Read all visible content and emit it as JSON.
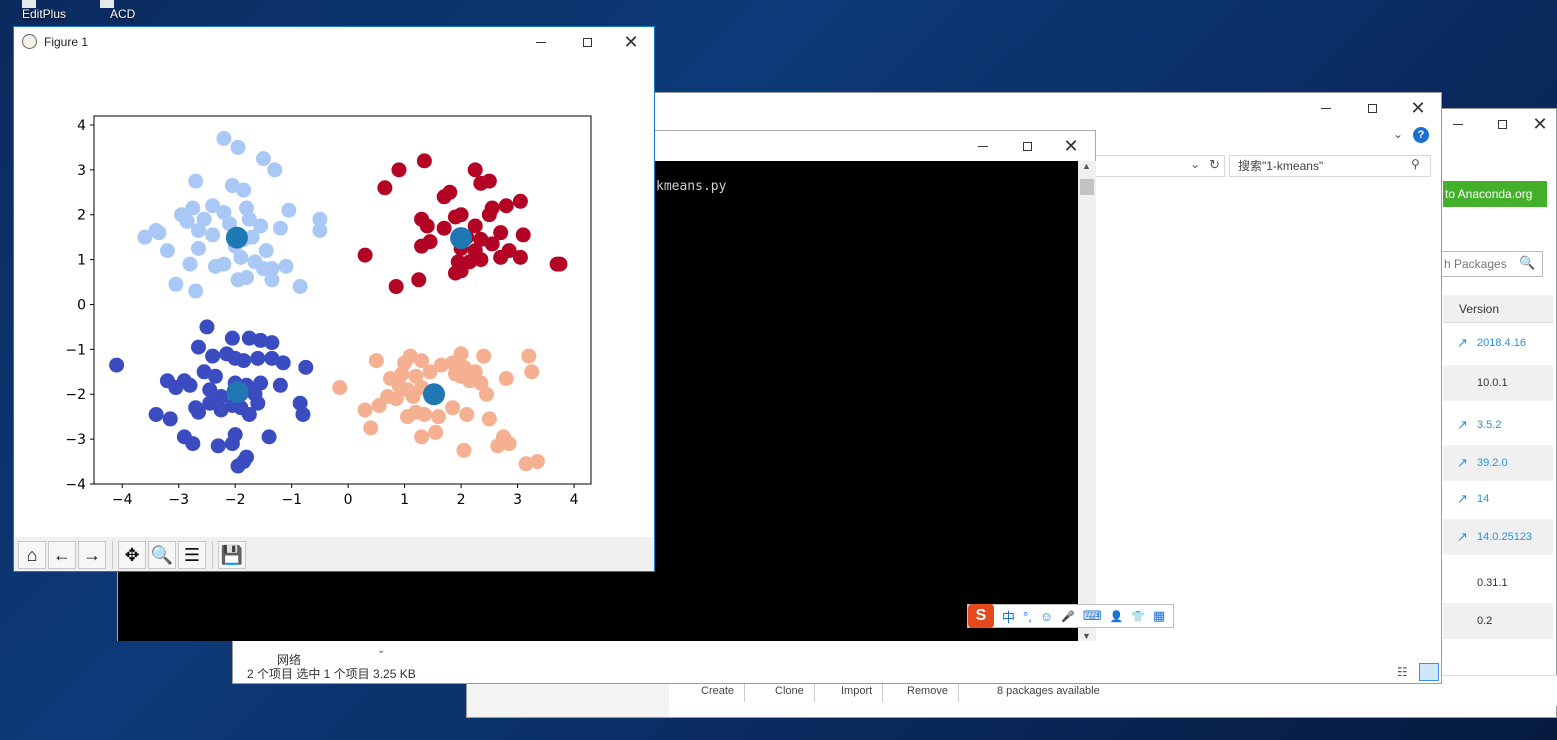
{
  "desktop": {
    "icons": [
      {
        "label": "EditPlus"
      },
      {
        "label": "ACD"
      }
    ]
  },
  "figure": {
    "title": "Figure 1",
    "toolbar": [
      "home-icon",
      "back-icon",
      "forward-icon",
      "pan-icon",
      "zoom-icon",
      "configure-icon",
      "save-icon"
    ]
  },
  "chart_data": {
    "type": "scatter",
    "title": "",
    "xlabel": "",
    "ylabel": "",
    "xlim": [
      -4.5,
      4.3
    ],
    "ylim": [
      -4,
      4.2
    ],
    "xticks": [
      -4,
      -3,
      -2,
      -1,
      0,
      1,
      2,
      3,
      4
    ],
    "yticks": [
      -4,
      -3,
      -2,
      -1,
      0,
      1,
      2,
      3,
      4
    ],
    "grid": false,
    "legend": "none",
    "series": [
      {
        "color": "#aac8f5",
        "points": [
          [
            -2.2,
            3.7
          ],
          [
            -1.95,
            3.5
          ],
          [
            -1.5,
            3.25
          ],
          [
            -1.3,
            3.0
          ],
          [
            -2.7,
            2.75
          ],
          [
            -2.05,
            2.65
          ],
          [
            -1.85,
            2.55
          ],
          [
            -2.4,
            2.2
          ],
          [
            -2.75,
            2.15
          ],
          [
            -2.95,
            2.0
          ],
          [
            -2.85,
            1.85
          ],
          [
            -2.55,
            1.9
          ],
          [
            -2.2,
            2.05
          ],
          [
            -1.8,
            2.15
          ],
          [
            -1.55,
            1.75
          ],
          [
            -1.75,
            1.9
          ],
          [
            -2.1,
            1.8
          ],
          [
            -1.05,
            2.1
          ],
          [
            -1.2,
            1.7
          ],
          [
            -0.5,
            1.9
          ],
          [
            -0.5,
            1.65
          ],
          [
            -3.6,
            1.5
          ],
          [
            -3.35,
            1.6
          ],
          [
            -3.4,
            1.65
          ],
          [
            -3.2,
            1.2
          ],
          [
            -2.65,
            1.25
          ],
          [
            -2.4,
            1.55
          ],
          [
            -2.65,
            1.65
          ],
          [
            -2.0,
            1.3
          ],
          [
            -1.85,
            1.45
          ],
          [
            -1.7,
            1.5
          ],
          [
            -1.45,
            1.2
          ],
          [
            -2.2,
            0.9
          ],
          [
            -2.35,
            0.85
          ],
          [
            -1.9,
            1.05
          ],
          [
            -1.65,
            0.95
          ],
          [
            -1.5,
            0.8
          ],
          [
            -1.35,
            0.8
          ],
          [
            -1.1,
            0.85
          ],
          [
            -1.95,
            0.55
          ],
          [
            -1.8,
            0.6
          ],
          [
            -1.35,
            0.55
          ],
          [
            -2.8,
            0.9
          ],
          [
            -3.05,
            0.45
          ],
          [
            -2.7,
            0.3
          ],
          [
            -0.85,
            0.4
          ]
        ]
      },
      {
        "color": "#b40426",
        "points": [
          [
            1.35,
            3.2
          ],
          [
            0.9,
            3.0
          ],
          [
            2.25,
            3.0
          ],
          [
            2.5,
            2.75
          ],
          [
            2.35,
            2.7
          ],
          [
            0.65,
            2.6
          ],
          [
            1.8,
            2.5
          ],
          [
            1.7,
            2.4
          ],
          [
            2.55,
            2.15
          ],
          [
            2.8,
            2.2
          ],
          [
            3.05,
            2.3
          ],
          [
            1.3,
            1.9
          ],
          [
            1.9,
            1.95
          ],
          [
            2.0,
            2.0
          ],
          [
            2.5,
            2.0
          ],
          [
            1.4,
            1.75
          ],
          [
            1.7,
            1.7
          ],
          [
            2.25,
            1.75
          ],
          [
            2.7,
            1.6
          ],
          [
            3.1,
            1.55
          ],
          [
            2.1,
            1.5
          ],
          [
            2.35,
            1.45
          ],
          [
            2.55,
            1.35
          ],
          [
            1.45,
            1.4
          ],
          [
            1.3,
            1.3
          ],
          [
            2.0,
            1.25
          ],
          [
            2.25,
            1.2
          ],
          [
            2.85,
            1.2
          ],
          [
            2.35,
            1.0
          ],
          [
            2.7,
            1.05
          ],
          [
            3.05,
            1.05
          ],
          [
            2.15,
            0.95
          ],
          [
            1.95,
            0.95
          ],
          [
            1.9,
            0.7
          ],
          [
            0.3,
            1.1
          ],
          [
            1.25,
            0.55
          ],
          [
            2.0,
            0.75
          ],
          [
            0.85,
            0.4
          ],
          [
            3.75,
            0.9
          ],
          [
            3.7,
            0.9
          ]
        ]
      },
      {
        "color": "#3b4cc0",
        "points": [
          [
            -2.5,
            -0.5
          ],
          [
            -2.05,
            -0.75
          ],
          [
            -1.75,
            -0.75
          ],
          [
            -1.55,
            -0.8
          ],
          [
            -1.35,
            -0.85
          ],
          [
            -2.65,
            -0.95
          ],
          [
            -2.15,
            -1.1
          ],
          [
            -2.4,
            -1.15
          ],
          [
            -2.0,
            -1.2
          ],
          [
            -1.85,
            -1.25
          ],
          [
            -1.6,
            -1.2
          ],
          [
            -1.35,
            -1.2
          ],
          [
            -1.15,
            -1.3
          ],
          [
            -0.75,
            -1.4
          ],
          [
            -4.1,
            -1.35
          ],
          [
            -3.2,
            -1.7
          ],
          [
            -2.9,
            -1.7
          ],
          [
            -2.8,
            -1.8
          ],
          [
            -3.05,
            -1.85
          ],
          [
            -2.55,
            -1.5
          ],
          [
            -2.35,
            -1.6
          ],
          [
            -2.0,
            -1.75
          ],
          [
            -1.8,
            -1.8
          ],
          [
            -1.55,
            -1.75
          ],
          [
            -1.2,
            -1.8
          ],
          [
            -2.45,
            -1.9
          ],
          [
            -2.25,
            -2.05
          ],
          [
            -1.9,
            -2.0
          ],
          [
            -1.65,
            -2.0
          ],
          [
            -2.7,
            -2.3
          ],
          [
            -2.45,
            -2.2
          ],
          [
            -2.25,
            -2.35
          ],
          [
            -2.05,
            -2.25
          ],
          [
            -1.9,
            -2.3
          ],
          [
            -1.6,
            -2.2
          ],
          [
            -0.85,
            -2.2
          ],
          [
            -2.65,
            -2.4
          ],
          [
            -1.75,
            -2.45
          ],
          [
            -0.8,
            -2.45
          ],
          [
            -3.4,
            -2.45
          ],
          [
            -3.15,
            -2.55
          ],
          [
            -2.9,
            -2.95
          ],
          [
            -2.75,
            -3.1
          ],
          [
            -2.0,
            -2.9
          ],
          [
            -2.05,
            -3.1
          ],
          [
            -2.3,
            -3.15
          ],
          [
            -1.4,
            -2.95
          ],
          [
            -1.8,
            -3.4
          ],
          [
            -1.95,
            -3.6
          ],
          [
            -1.85,
            -3.5
          ]
        ]
      },
      {
        "color": "#f5b092",
        "points": [
          [
            2.0,
            -1.1
          ],
          [
            2.4,
            -1.15
          ],
          [
            3.2,
            -1.15
          ],
          [
            0.5,
            -1.25
          ],
          [
            1.0,
            -1.3
          ],
          [
            1.1,
            -1.15
          ],
          [
            1.3,
            -1.25
          ],
          [
            1.45,
            -1.5
          ],
          [
            1.65,
            -1.35
          ],
          [
            1.85,
            -1.3
          ],
          [
            2.05,
            -1.4
          ],
          [
            2.25,
            -1.5
          ],
          [
            0.95,
            -1.55
          ],
          [
            1.2,
            -1.6
          ],
          [
            0.75,
            -1.65
          ],
          [
            1.9,
            -1.55
          ],
          [
            2.0,
            -1.6
          ],
          [
            3.25,
            -1.5
          ],
          [
            2.15,
            -1.7
          ],
          [
            2.35,
            -1.75
          ],
          [
            2.8,
            -1.65
          ],
          [
            0.9,
            -1.8
          ],
          [
            1.05,
            -1.9
          ],
          [
            1.3,
            -1.85
          ],
          [
            -0.15,
            -1.85
          ],
          [
            2.45,
            -2.0
          ],
          [
            0.85,
            -2.1
          ],
          [
            1.15,
            -2.05
          ],
          [
            0.7,
            -2.05
          ],
          [
            0.55,
            -2.25
          ],
          [
            0.3,
            -2.35
          ],
          [
            1.2,
            -2.4
          ],
          [
            1.6,
            -2.5
          ],
          [
            1.85,
            -2.3
          ],
          [
            2.1,
            -2.45
          ],
          [
            2.5,
            -2.55
          ],
          [
            1.35,
            -2.45
          ],
          [
            1.05,
            -2.5
          ],
          [
            0.4,
            -2.75
          ],
          [
            1.55,
            -2.85
          ],
          [
            2.75,
            -2.95
          ],
          [
            2.85,
            -3.1
          ],
          [
            2.65,
            -3.15
          ],
          [
            1.3,
            -2.95
          ],
          [
            2.05,
            -3.25
          ],
          [
            3.15,
            -3.55
          ],
          [
            3.35,
            -3.5
          ]
        ]
      },
      {
        "color": "#1f77b4",
        "name": "",
        "points": [
          [
            -1.97,
            1.49
          ],
          [
            2.0,
            1.48
          ],
          [
            -1.96,
            -1.95
          ],
          [
            1.52,
            -2.0
          ]
        ]
      }
    ]
  },
  "console": {
    "text": "kmeans.py"
  },
  "explorer": {
    "search_placeholder": "搜索\"1-kmeans\"",
    "status": "2 个项目    选中 1 个项目  3.25 KB",
    "nav_label": "网络"
  },
  "anaconda": {
    "connect_btn": "to Anaconda.org",
    "search_placeholder": "h Packages",
    "version_header": "Version",
    "packages": [
      {
        "version": "2018.4.16",
        "update": true
      },
      {
        "version": "10.0.1",
        "update": false
      },
      {
        "version": "3.5.2",
        "update": true
      },
      {
        "version": "39.2.0",
        "update": true
      },
      {
        "version": "14",
        "update": true
      },
      {
        "version": "14.0.25123",
        "update": true
      },
      {
        "version": "0.31.1",
        "update": false
      },
      {
        "version": "0.2",
        "update": false
      }
    ],
    "buttons": [
      "Create",
      "Clone",
      "Import",
      "Remove"
    ],
    "count_text": "8 packages available"
  },
  "ime": {
    "items": [
      "中",
      "°,",
      "☺",
      "🎤",
      "⌨",
      "👤",
      "👕",
      "▦"
    ]
  }
}
